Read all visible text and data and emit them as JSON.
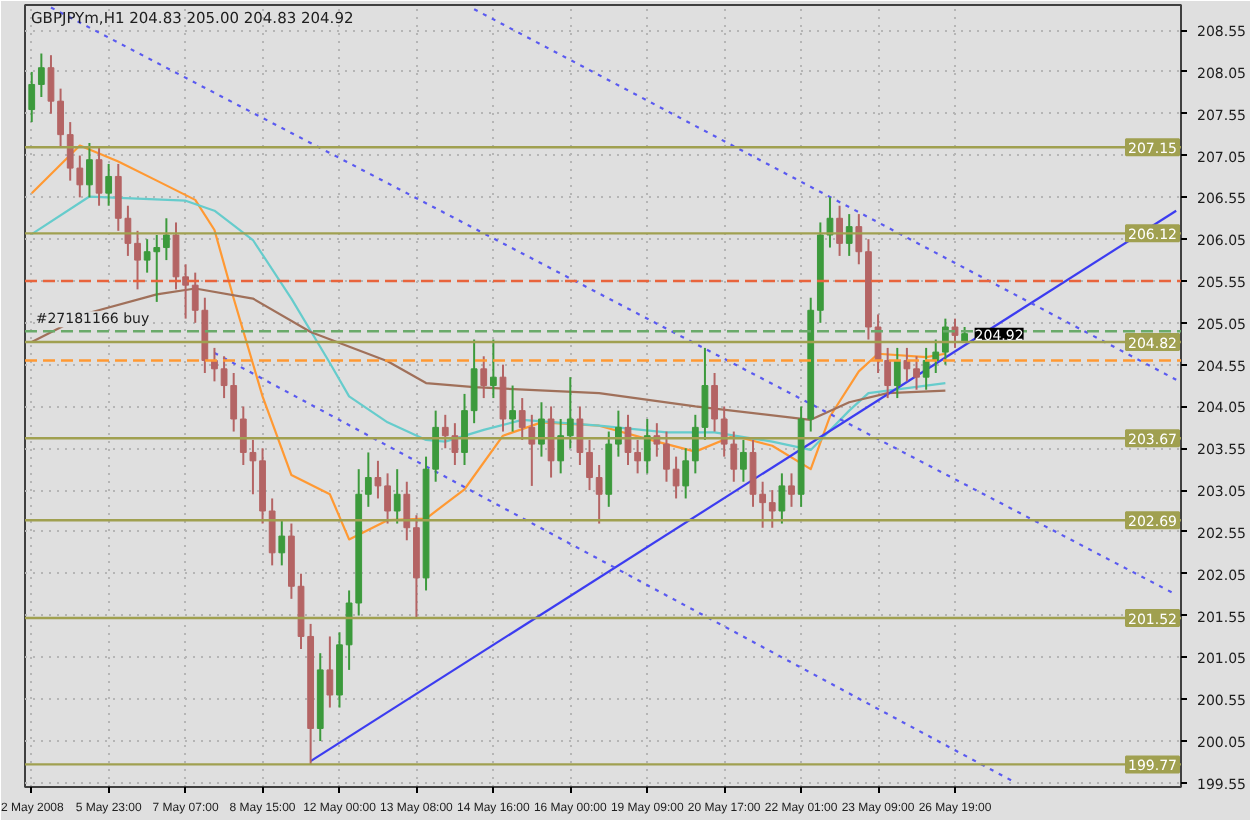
{
  "chart_data": {
    "type": "candlestick",
    "title": "GBPJPYm,H1 204.83 205.00 204.83 204.92",
    "categories": [
      "2 May 2008",
      null,
      null,
      null,
      null,
      null,
      null,
      null,
      "5 May 23:00",
      null,
      null,
      null,
      null,
      null,
      null,
      null,
      "7 May 07:00",
      null,
      null,
      null,
      null,
      null,
      null,
      null,
      "8 May 15:00",
      null,
      null,
      null,
      null,
      null,
      null,
      null,
      "12 May 00:00",
      null,
      null,
      null,
      null,
      null,
      null,
      null,
      "13 May 08:00",
      null,
      null,
      null,
      null,
      null,
      null,
      null,
      "14 May 16:00",
      null,
      null,
      null,
      null,
      null,
      null,
      null,
      "16 May 00:00",
      null,
      null,
      null,
      null,
      null,
      null,
      null,
      "19 May 09:00",
      null,
      null,
      null,
      null,
      null,
      null,
      null,
      "20 May 17:00",
      null,
      null,
      null,
      null,
      null,
      null,
      null,
      "22 May 01:00",
      null,
      null,
      null,
      null,
      null,
      null,
      null,
      "23 May 09:00",
      null,
      null,
      null,
      null,
      null,
      null,
      null,
      "26 May 19:00",
      null,
      null,
      null,
      null,
      null,
      null,
      null,
      null,
      null,
      null,
      null,
      null,
      null,
      null,
      null,
      null,
      null,
      null,
      null,
      null,
      null,
      null,
      null
    ],
    "ohlc": [
      [
        207.6,
        208.05,
        207.45,
        207.9
      ],
      [
        207.9,
        208.27,
        207.75,
        208.1
      ],
      [
        208.1,
        208.25,
        207.55,
        207.7
      ],
      [
        207.7,
        207.85,
        207.15,
        207.3
      ],
      [
        207.3,
        207.45,
        206.75,
        206.9
      ],
      [
        206.9,
        207.05,
        206.55,
        206.7
      ],
      [
        206.7,
        207.2,
        206.55,
        207.0
      ],
      [
        207.0,
        207.15,
        206.45,
        206.6
      ],
      [
        206.6,
        206.95,
        206.45,
        206.8
      ],
      [
        206.8,
        206.95,
        206.15,
        206.3
      ],
      [
        206.3,
        206.45,
        205.85,
        206.0
      ],
      [
        206.0,
        206.15,
        205.45,
        205.8
      ],
      [
        205.8,
        206.05,
        205.65,
        205.9
      ],
      [
        205.9,
        206.1,
        205.3,
        205.95
      ],
      [
        205.95,
        206.3,
        205.8,
        206.1
      ],
      [
        206.1,
        206.25,
        205.45,
        205.6
      ],
      [
        205.6,
        205.75,
        205.1,
        205.5
      ],
      [
        205.5,
        205.65,
        205.05,
        205.2
      ],
      [
        205.2,
        205.35,
        204.45,
        204.6
      ],
      [
        204.6,
        204.75,
        204.35,
        204.5
      ],
      [
        204.5,
        204.65,
        204.15,
        204.3
      ],
      [
        204.3,
        204.45,
        203.75,
        203.9
      ],
      [
        203.9,
        204.05,
        203.35,
        203.5
      ],
      [
        203.5,
        203.65,
        203.0,
        203.4
      ],
      [
        203.4,
        203.55,
        202.65,
        202.8
      ],
      [
        202.8,
        202.95,
        202.15,
        202.3
      ],
      [
        202.3,
        202.7,
        202.15,
        202.5
      ],
      [
        202.5,
        202.65,
        201.75,
        201.9
      ],
      [
        201.9,
        202.05,
        201.15,
        201.3
      ],
      [
        201.3,
        201.45,
        199.77,
        200.2
      ],
      [
        200.2,
        201.1,
        200.05,
        200.9
      ],
      [
        200.9,
        201.3,
        200.45,
        200.6
      ],
      [
        200.6,
        201.35,
        200.45,
        201.2
      ],
      [
        201.2,
        201.85,
        200.9,
        201.7
      ],
      [
        201.7,
        203.3,
        201.55,
        203.0
      ],
      [
        203.0,
        203.5,
        202.85,
        203.2
      ],
      [
        203.2,
        203.4,
        202.95,
        203.1
      ],
      [
        203.1,
        203.25,
        202.65,
        202.8
      ],
      [
        202.8,
        203.3,
        202.65,
        203.0
      ],
      [
        203.0,
        203.15,
        202.45,
        202.6
      ],
      [
        202.6,
        202.75,
        201.52,
        202.0
      ],
      [
        202.0,
        203.45,
        201.85,
        203.3
      ],
      [
        203.3,
        204.0,
        203.15,
        203.8
      ],
      [
        203.8,
        203.95,
        203.55,
        203.7
      ],
      [
        203.7,
        203.85,
        203.35,
        203.5
      ],
      [
        203.5,
        204.2,
        203.35,
        204.0
      ],
      [
        204.0,
        204.85,
        203.85,
        204.5
      ],
      [
        204.5,
        204.65,
        204.15,
        204.3
      ],
      [
        204.3,
        204.85,
        204.15,
        204.4
      ],
      [
        204.4,
        204.55,
        203.75,
        203.9
      ],
      [
        203.9,
        204.3,
        203.75,
        204.0
      ],
      [
        204.0,
        204.15,
        203.65,
        203.8
      ],
      [
        203.8,
        203.95,
        203.1,
        203.6
      ],
      [
        203.6,
        204.1,
        203.45,
        203.9
      ],
      [
        203.9,
        204.05,
        203.2,
        203.4
      ],
      [
        203.4,
        203.9,
        203.25,
        203.7
      ],
      [
        203.7,
        204.4,
        203.55,
        203.9
      ],
      [
        203.9,
        204.05,
        203.35,
        203.5
      ],
      [
        203.5,
        203.65,
        203.05,
        203.2
      ],
      [
        203.2,
        203.35,
        202.65,
        203.0
      ],
      [
        203.0,
        203.75,
        202.85,
        203.6
      ],
      [
        203.6,
        204.0,
        203.45,
        203.8
      ],
      [
        203.8,
        203.95,
        203.35,
        203.5
      ],
      [
        203.5,
        203.65,
        203.25,
        203.4
      ],
      [
        203.4,
        203.9,
        203.25,
        203.7
      ],
      [
        203.7,
        203.85,
        203.45,
        203.6
      ],
      [
        203.6,
        203.75,
        203.15,
        203.3
      ],
      [
        203.3,
        203.45,
        202.95,
        203.1
      ],
      [
        203.1,
        203.55,
        202.95,
        203.4
      ],
      [
        203.4,
        203.95,
        203.25,
        203.8
      ],
      [
        203.8,
        204.75,
        203.65,
        204.3
      ],
      [
        204.3,
        204.45,
        203.75,
        203.9
      ],
      [
        203.9,
        204.05,
        203.45,
        203.6
      ],
      [
        203.6,
        203.75,
        203.15,
        203.3
      ],
      [
        203.3,
        203.65,
        203.15,
        203.5
      ],
      [
        203.5,
        203.65,
        202.85,
        203.0
      ],
      [
        203.0,
        203.15,
        202.6,
        202.9
      ],
      [
        202.9,
        203.05,
        202.6,
        202.8
      ],
      [
        202.8,
        203.25,
        202.65,
        203.1
      ],
      [
        203.1,
        203.25,
        202.85,
        203.0
      ],
      [
        203.0,
        204.05,
        202.85,
        203.9
      ],
      [
        203.9,
        205.35,
        203.75,
        205.2
      ],
      [
        205.2,
        206.25,
        205.05,
        206.1
      ],
      [
        206.1,
        206.55,
        205.95,
        206.3
      ],
      [
        206.3,
        206.45,
        205.85,
        206.0
      ],
      [
        206.0,
        206.35,
        205.85,
        206.2
      ],
      [
        206.2,
        206.35,
        205.75,
        205.9
      ],
      [
        205.9,
        206.05,
        204.85,
        205.0
      ],
      [
        205.0,
        205.15,
        204.45,
        204.6
      ],
      [
        204.6,
        204.75,
        204.15,
        204.3
      ],
      [
        204.3,
        204.75,
        204.15,
        204.6
      ],
      [
        204.6,
        204.75,
        204.35,
        204.5
      ],
      [
        204.5,
        204.65,
        204.25,
        204.4
      ],
      [
        204.4,
        204.75,
        204.25,
        204.6
      ],
      [
        204.6,
        204.85,
        204.45,
        204.7
      ],
      [
        204.7,
        205.1,
        204.55,
        205.0
      ],
      [
        205.0,
        205.1,
        204.75,
        204.9
      ],
      [
        204.83,
        205.0,
        204.83,
        204.92
      ],
      null,
      null,
      null,
      null,
      null,
      null,
      null,
      null,
      null,
      null,
      null,
      null,
      null,
      null,
      null,
      null,
      null,
      null,
      null,
      null,
      null,
      null
    ],
    "colors": [
      "#3c9a3c",
      "#3c9a3c",
      "#b46464",
      "#b46464",
      "#b46464",
      "#b46464",
      "#3c9a3c",
      "#b46464",
      "#3c9a3c",
      "#b46464",
      "#b46464",
      "#b46464",
      "#3c9a3c",
      "#3c9a3c",
      "#3c9a3c",
      "#b46464",
      "#b46464",
      "#b46464",
      "#b46464",
      "#b46464",
      "#b46464",
      "#b46464",
      "#b46464",
      "#b46464",
      "#b46464",
      "#b46464",
      "#3c9a3c",
      "#b46464",
      "#b46464",
      "#b46464",
      "#3c9a3c",
      "#b46464",
      "#3c9a3c",
      "#3c9a3c",
      "#3c9a3c",
      "#3c9a3c",
      "#b46464",
      "#b46464",
      "#3c9a3c",
      "#b46464",
      "#b46464",
      "#3c9a3c",
      "#3c9a3c",
      "#b46464",
      "#b46464",
      "#3c9a3c",
      "#3c9a3c",
      "#b46464",
      "#3c9a3c",
      "#b46464",
      "#3c9a3c",
      "#b46464",
      "#b46464",
      "#3c9a3c",
      "#b46464",
      "#3c9a3c",
      "#3c9a3c",
      "#b46464",
      "#b46464",
      "#b46464",
      "#3c9a3c",
      "#3c9a3c",
      "#b46464",
      "#b46464",
      "#3c9a3c",
      "#b46464",
      "#b46464",
      "#b46464",
      "#3c9a3c",
      "#3c9a3c",
      "#3c9a3c",
      "#b46464",
      "#b46464",
      "#b46464",
      "#3c9a3c",
      "#b46464",
      "#b46464",
      "#b46464",
      "#3c9a3c",
      "#b46464",
      "#3c9a3c",
      "#3c9a3c",
      "#3c9a3c",
      "#3c9a3c",
      "#b46464",
      "#3c9a3c",
      "#b46464",
      "#b46464",
      "#b46464",
      "#b46464",
      "#3c9a3c",
      "#b46464",
      "#b46464",
      "#3c9a3c",
      "#3c9a3c",
      "#3c9a3c",
      "#b46464",
      "#3c9a3c",
      null,
      null,
      null,
      null,
      null,
      null,
      null,
      null,
      null,
      null,
      null,
      null,
      null,
      null,
      null,
      null,
      null,
      null,
      null,
      null,
      null,
      null
    ],
    "series": [
      {
        "type": "line",
        "color": "#ff9933",
        "line_style": "solid",
        "values": [
          206.6,
          null,
          null,
          null,
          null,
          207.17,
          null,
          null,
          null,
          206.98,
          null,
          null,
          null,
          206.75,
          null,
          null,
          null,
          206.52,
          null,
          206.16,
          null,
          205.34,
          null,
          null,
          204.17,
          null,
          null,
          203.23,
          null,
          null,
          null,
          203.0,
          null,
          202.46,
          null,
          null,
          null,
          202.69,
          null,
          null,
          null,
          202.71,
          null,
          null,
          null,
          203.06,
          null,
          null,
          null,
          203.7,
          null,
          null,
          null,
          203.86,
          null,
          null,
          null,
          null,
          null,
          203.82,
          null,
          null,
          null,
          null,
          null,
          203.63,
          null,
          null,
          null,
          203.51,
          null,
          null,
          null,
          203.7,
          null,
          null,
          null,
          203.58,
          null,
          null,
          null,
          203.3,
          null,
          203.93,
          null,
          null,
          204.47,
          null,
          204.68,
          null,
          null,
          null,
          null,
          204.64,
          null,
          204.68,
          null,
          null,
          null,
          null,
          null,
          null,
          null,
          null,
          null,
          null,
          null,
          null,
          null,
          null,
          null,
          null,
          null,
          null,
          null,
          null,
          null,
          null,
          null,
          null
        ]
      },
      {
        "type": "line",
        "color": "#66cccc",
        "line_style": "solid",
        "values": [
          206.11,
          null,
          null,
          null,
          null,
          null,
          206.56,
          null,
          null,
          null,
          null,
          null,
          null,
          null,
          null,
          null,
          206.51,
          null,
          null,
          206.39,
          null,
          null,
          null,
          206.04,
          null,
          null,
          null,
          205.34,
          null,
          null,
          null,
          204.57,
          null,
          204.17,
          null,
          null,
          null,
          203.86,
          null,
          null,
          null,
          203.65,
          null,
          203.63,
          null,
          null,
          null,
          203.77,
          null,
          null,
          null,
          203.89,
          null,
          null,
          null,
          null,
          null,
          null,
          null,
          203.82,
          null,
          null,
          null,
          null,
          null,
          null,
          203.74,
          null,
          null,
          null,
          null,
          203.74,
          null,
          null,
          null,
          null,
          null,
          203.63,
          null,
          null,
          null,
          203.53,
          null,
          null,
          null,
          204.0,
          null,
          204.21,
          null,
          null,
          null,
          null,
          null,
          null,
          null,
          204.33,
          null,
          null,
          null,
          null,
          null,
          null,
          null,
          null,
          null,
          null,
          null,
          null,
          null,
          null,
          null,
          null,
          null,
          null,
          null,
          null,
          null,
          null,
          null,
          null
        ]
      },
      {
        "type": "line",
        "color": "#a0705a",
        "line_style": "solid",
        "values": [
          204.82,
          null,
          null,
          null,
          null,
          null,
          205.17,
          null,
          null,
          null,
          null,
          null,
          null,
          205.39,
          null,
          null,
          null,
          205.46,
          null,
          null,
          null,
          null,
          null,
          205.34,
          null,
          null,
          null,
          null,
          null,
          204.94,
          null,
          null,
          null,
          null,
          null,
          null,
          null,
          204.59,
          null,
          null,
          null,
          204.33,
          null,
          null,
          null,
          null,
          204.28,
          null,
          null,
          null,
          null,
          null,
          null,
          null,
          null,
          null,
          null,
          null,
          null,
          204.21,
          null,
          null,
          null,
          null,
          null,
          null,
          null,
          null,
          null,
          204.05,
          null,
          null,
          null,
          null,
          null,
          null,
          null,
          null,
          null,
          null,
          null,
          203.89,
          null,
          null,
          null,
          204.1,
          null,
          null,
          null,
          204.21,
          null,
          null,
          null,
          null,
          null,
          204.24,
          null,
          null,
          null,
          null,
          null,
          null,
          null,
          null,
          null,
          null,
          null,
          null,
          null,
          null,
          null,
          null,
          null,
          null,
          null,
          null,
          null,
          null,
          null,
          null
        ]
      },
      {
        "type": "line",
        "color": "#3c3cf0",
        "line_style": "solid",
        "values": [
          null,
          null,
          null,
          null,
          null,
          null,
          null,
          null,
          null,
          null,
          null,
          null,
          null,
          null,
          null,
          null,
          null,
          null,
          null,
          null,
          null,
          null,
          null,
          null,
          null,
          null,
          null,
          null,
          null,
          199.81,
          null,
          null,
          null,
          null,
          null,
          null,
          null,
          null,
          null,
          null,
          null,
          null,
          null,
          null,
          null,
          null,
          null,
          null,
          null,
          null,
          null,
          null,
          null,
          null,
          null,
          null,
          null,
          null,
          null,
          null,
          null,
          null,
          null,
          null,
          null,
          null,
          null,
          null,
          null,
          null,
          null,
          null,
          null,
          null,
          null,
          null,
          null,
          null,
          null,
          null,
          null,
          null,
          null,
          null,
          null,
          null,
          null,
          null,
          null,
          null,
          null,
          null,
          null,
          null,
          null,
          null,
          null,
          null,
          null,
          null,
          null,
          null,
          null,
          null,
          null,
          null,
          null,
          null,
          null,
          null,
          null,
          null,
          null,
          null,
          null,
          null,
          null,
          null,
          null,
          206.39
        ]
      },
      {
        "type": "line",
        "color": "#5a5af0",
        "line_style": "dotted",
        "values": [
          null,
          null,
          208.82,
          null,
          null,
          null,
          null,
          null,
          null,
          null,
          null,
          null,
          null,
          null,
          null,
          null,
          null,
          null,
          null,
          null,
          null,
          null,
          null,
          null,
          null,
          null,
          null,
          null,
          null,
          null,
          null,
          null,
          null,
          null,
          null,
          null,
          null,
          null,
          null,
          null,
          null,
          null,
          null,
          null,
          null,
          null,
          null,
          null,
          null,
          null,
          null,
          null,
          null,
          null,
          null,
          null,
          null,
          null,
          null,
          null,
          null,
          null,
          null,
          null,
          null,
          null,
          null,
          null,
          null,
          null,
          null,
          null,
          null,
          null,
          null,
          null,
          null,
          null,
          null,
          null,
          null,
          null,
          null,
          null,
          null,
          null,
          null,
          null,
          null,
          null,
          null,
          null,
          null,
          null,
          null,
          null,
          null,
          null,
          null,
          null,
          null,
          null,
          null,
          null,
          null,
          null,
          null,
          null,
          null,
          null,
          null,
          null,
          null,
          null,
          null,
          null,
          null,
          null,
          null,
          201.8
        ]
      },
      {
        "type": "line",
        "color": "#5a5af0",
        "line_style": "dotted",
        "values": [
          null,
          null,
          null,
          null,
          null,
          null,
          null,
          null,
          null,
          null,
          null,
          null,
          null,
          null,
          null,
          null,
          null,
          null,
          null,
          null,
          null,
          null,
          null,
          null,
          null,
          null,
          null,
          null,
          null,
          null,
          null,
          null,
          null,
          null,
          null,
          null,
          null,
          null,
          null,
          null,
          null,
          null,
          null,
          null,
          null,
          null,
          208.8,
          null,
          null,
          null,
          null,
          null,
          null,
          null,
          null,
          null,
          null,
          null,
          null,
          null,
          null,
          null,
          null,
          null,
          null,
          null,
          null,
          null,
          null,
          null,
          null,
          null,
          null,
          null,
          null,
          null,
          null,
          null,
          null,
          null,
          null,
          null,
          null,
          null,
          null,
          null,
          null,
          null,
          null,
          null,
          null,
          null,
          null,
          null,
          null,
          null,
          null,
          null,
          null,
          null,
          null,
          null,
          null,
          null,
          null,
          null,
          null,
          null,
          null,
          null,
          null,
          null,
          null,
          null,
          null,
          null,
          null,
          null,
          null,
          204.37
        ]
      },
      {
        "type": "line",
        "color": "#5a5af0",
        "line_style": "dotted",
        "values": [
          null,
          null,
          null,
          null,
          null,
          null,
          null,
          null,
          null,
          null,
          null,
          null,
          null,
          null,
          null,
          null,
          null,
          null,
          null,
          204.69,
          null,
          null,
          null,
          null,
          null,
          null,
          null,
          null,
          null,
          null,
          null,
          null,
          null,
          null,
          null,
          null,
          null,
          null,
          null,
          null,
          null,
          null,
          null,
          null,
          null,
          null,
          null,
          null,
          null,
          null,
          null,
          null,
          null,
          null,
          null,
          null,
          null,
          null,
          null,
          null,
          null,
          null,
          null,
          null,
          null,
          null,
          null,
          null,
          null,
          null,
          null,
          null,
          null,
          null,
          null,
          null,
          null,
          null,
          null,
          null,
          null,
          null,
          null,
          null,
          null,
          null,
          null,
          null,
          null,
          null,
          null,
          null,
          null,
          null,
          null,
          null,
          null,
          null,
          null,
          null,
          null,
          null,
          199.57,
          null,
          null,
          null,
          null,
          null,
          null,
          null,
          null,
          null,
          null,
          null,
          null,
          null,
          null,
          null,
          null,
          null
        ]
      }
    ],
    "ylim": [
      199.5,
      208.85
    ],
    "yticks": [
      199.55,
      200.05,
      200.55,
      201.05,
      201.55,
      202.05,
      202.55,
      203.05,
      203.55,
      204.05,
      204.55,
      205.05,
      205.55,
      206.05,
      206.55,
      207.05,
      207.55,
      208.05,
      208.55
    ],
    "grid": true,
    "ref_lines": [
      {
        "axis": "y",
        "value": 207.15,
        "label": "207.15",
        "color": "#a0a050",
        "line_style": "solid"
      },
      {
        "axis": "y",
        "value": 206.12,
        "label": "206.12",
        "color": "#a0a050",
        "line_style": "solid"
      },
      {
        "axis": "y",
        "value": 204.82,
        "label": "204.82",
        "color": "#a0a050",
        "line_style": "solid"
      },
      {
        "axis": "y",
        "value": 203.67,
        "label": "203.67",
        "color": "#a0a050",
        "line_style": "solid"
      },
      {
        "axis": "y",
        "value": 202.69,
        "label": "202.69",
        "color": "#a0a050",
        "line_style": "solid"
      },
      {
        "axis": "y",
        "value": 201.52,
        "label": "201.52",
        "color": "#a0a050",
        "line_style": "solid"
      },
      {
        "axis": "y",
        "value": 199.77,
        "label": "199.77",
        "color": "#a0a050",
        "line_style": "solid"
      },
      {
        "axis": "y",
        "value": 205.55,
        "color": "#e8643c",
        "line_style": "dashed"
      },
      {
        "axis": "y",
        "value": 204.6,
        "color": "#ff9933",
        "line_style": "dashed"
      },
      {
        "axis": "y",
        "value": 204.95,
        "label": "#27181166 buy",
        "color": "#6aaa6a",
        "line_style": "dashed"
      }
    ],
    "annotations": [
      {
        "text": "204.92",
        "y": 204.92
      }
    ]
  }
}
